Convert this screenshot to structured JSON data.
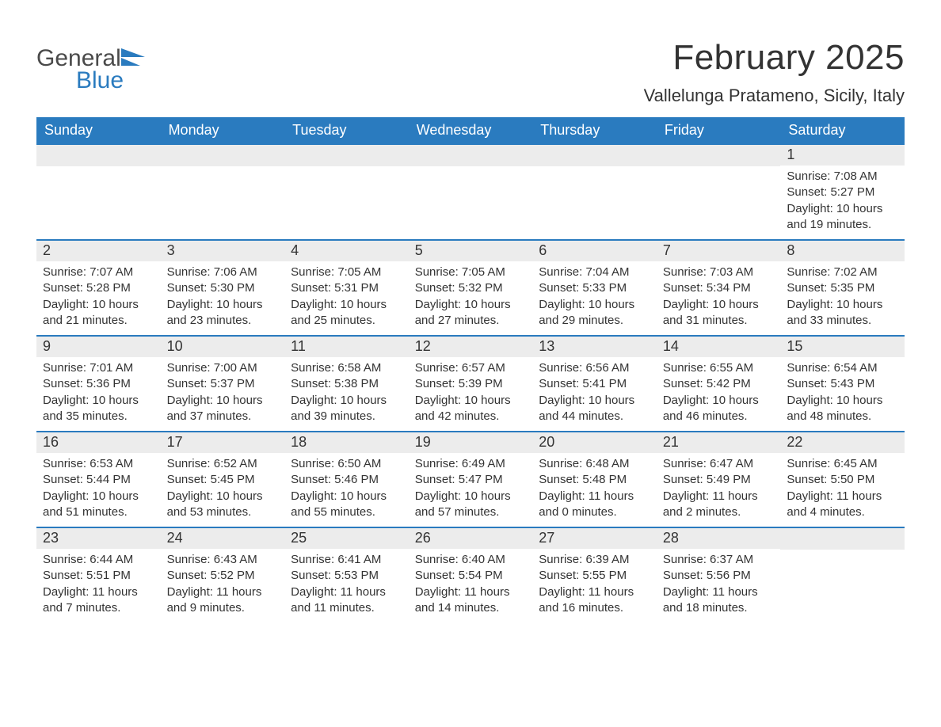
{
  "logo": {
    "word1": "General",
    "word2": "Blue"
  },
  "title": "February 2025",
  "location": "Vallelunga Pratameno, Sicily, Italy",
  "colors": {
    "header_bg": "#2a7bbf",
    "header_text": "#ffffff",
    "daynum_bg": "#ececec",
    "row_border": "#2a7bbf",
    "body_text": "#333333",
    "logo_gray": "#4a4a4a",
    "logo_blue": "#2a7bbf",
    "page_bg": "#ffffff"
  },
  "typography": {
    "title_fontsize": 44,
    "location_fontsize": 22,
    "weekday_fontsize": 18,
    "daynum_fontsize": 18,
    "body_fontsize": 15
  },
  "weekdays": [
    "Sunday",
    "Monday",
    "Tuesday",
    "Wednesday",
    "Thursday",
    "Friday",
    "Saturday"
  ],
  "weeks": [
    [
      {
        "empty": true
      },
      {
        "empty": true
      },
      {
        "empty": true
      },
      {
        "empty": true
      },
      {
        "empty": true
      },
      {
        "empty": true
      },
      {
        "day": "1",
        "sunrise": "Sunrise: 7:08 AM",
        "sunset": "Sunset: 5:27 PM",
        "daylight": "Daylight: 10 hours and 19 minutes."
      }
    ],
    [
      {
        "day": "2",
        "sunrise": "Sunrise: 7:07 AM",
        "sunset": "Sunset: 5:28 PM",
        "daylight": "Daylight: 10 hours and 21 minutes."
      },
      {
        "day": "3",
        "sunrise": "Sunrise: 7:06 AM",
        "sunset": "Sunset: 5:30 PM",
        "daylight": "Daylight: 10 hours and 23 minutes."
      },
      {
        "day": "4",
        "sunrise": "Sunrise: 7:05 AM",
        "sunset": "Sunset: 5:31 PM",
        "daylight": "Daylight: 10 hours and 25 minutes."
      },
      {
        "day": "5",
        "sunrise": "Sunrise: 7:05 AM",
        "sunset": "Sunset: 5:32 PM",
        "daylight": "Daylight: 10 hours and 27 minutes."
      },
      {
        "day": "6",
        "sunrise": "Sunrise: 7:04 AM",
        "sunset": "Sunset: 5:33 PM",
        "daylight": "Daylight: 10 hours and 29 minutes."
      },
      {
        "day": "7",
        "sunrise": "Sunrise: 7:03 AM",
        "sunset": "Sunset: 5:34 PM",
        "daylight": "Daylight: 10 hours and 31 minutes."
      },
      {
        "day": "8",
        "sunrise": "Sunrise: 7:02 AM",
        "sunset": "Sunset: 5:35 PM",
        "daylight": "Daylight: 10 hours and 33 minutes."
      }
    ],
    [
      {
        "day": "9",
        "sunrise": "Sunrise: 7:01 AM",
        "sunset": "Sunset: 5:36 PM",
        "daylight": "Daylight: 10 hours and 35 minutes."
      },
      {
        "day": "10",
        "sunrise": "Sunrise: 7:00 AM",
        "sunset": "Sunset: 5:37 PM",
        "daylight": "Daylight: 10 hours and 37 minutes."
      },
      {
        "day": "11",
        "sunrise": "Sunrise: 6:58 AM",
        "sunset": "Sunset: 5:38 PM",
        "daylight": "Daylight: 10 hours and 39 minutes."
      },
      {
        "day": "12",
        "sunrise": "Sunrise: 6:57 AM",
        "sunset": "Sunset: 5:39 PM",
        "daylight": "Daylight: 10 hours and 42 minutes."
      },
      {
        "day": "13",
        "sunrise": "Sunrise: 6:56 AM",
        "sunset": "Sunset: 5:41 PM",
        "daylight": "Daylight: 10 hours and 44 minutes."
      },
      {
        "day": "14",
        "sunrise": "Sunrise: 6:55 AM",
        "sunset": "Sunset: 5:42 PM",
        "daylight": "Daylight: 10 hours and 46 minutes."
      },
      {
        "day": "15",
        "sunrise": "Sunrise: 6:54 AM",
        "sunset": "Sunset: 5:43 PM",
        "daylight": "Daylight: 10 hours and 48 minutes."
      }
    ],
    [
      {
        "day": "16",
        "sunrise": "Sunrise: 6:53 AM",
        "sunset": "Sunset: 5:44 PM",
        "daylight": "Daylight: 10 hours and 51 minutes."
      },
      {
        "day": "17",
        "sunrise": "Sunrise: 6:52 AM",
        "sunset": "Sunset: 5:45 PM",
        "daylight": "Daylight: 10 hours and 53 minutes."
      },
      {
        "day": "18",
        "sunrise": "Sunrise: 6:50 AM",
        "sunset": "Sunset: 5:46 PM",
        "daylight": "Daylight: 10 hours and 55 minutes."
      },
      {
        "day": "19",
        "sunrise": "Sunrise: 6:49 AM",
        "sunset": "Sunset: 5:47 PM",
        "daylight": "Daylight: 10 hours and 57 minutes."
      },
      {
        "day": "20",
        "sunrise": "Sunrise: 6:48 AM",
        "sunset": "Sunset: 5:48 PM",
        "daylight": "Daylight: 11 hours and 0 minutes."
      },
      {
        "day": "21",
        "sunrise": "Sunrise: 6:47 AM",
        "sunset": "Sunset: 5:49 PM",
        "daylight": "Daylight: 11 hours and 2 minutes."
      },
      {
        "day": "22",
        "sunrise": "Sunrise: 6:45 AM",
        "sunset": "Sunset: 5:50 PM",
        "daylight": "Daylight: 11 hours and 4 minutes."
      }
    ],
    [
      {
        "day": "23",
        "sunrise": "Sunrise: 6:44 AM",
        "sunset": "Sunset: 5:51 PM",
        "daylight": "Daylight: 11 hours and 7 minutes."
      },
      {
        "day": "24",
        "sunrise": "Sunrise: 6:43 AM",
        "sunset": "Sunset: 5:52 PM",
        "daylight": "Daylight: 11 hours and 9 minutes."
      },
      {
        "day": "25",
        "sunrise": "Sunrise: 6:41 AM",
        "sunset": "Sunset: 5:53 PM",
        "daylight": "Daylight: 11 hours and 11 minutes."
      },
      {
        "day": "26",
        "sunrise": "Sunrise: 6:40 AM",
        "sunset": "Sunset: 5:54 PM",
        "daylight": "Daylight: 11 hours and 14 minutes."
      },
      {
        "day": "27",
        "sunrise": "Sunrise: 6:39 AM",
        "sunset": "Sunset: 5:55 PM",
        "daylight": "Daylight: 11 hours and 16 minutes."
      },
      {
        "day": "28",
        "sunrise": "Sunrise: 6:37 AM",
        "sunset": "Sunset: 5:56 PM",
        "daylight": "Daylight: 11 hours and 18 minutes."
      },
      {
        "empty": true
      }
    ]
  ]
}
